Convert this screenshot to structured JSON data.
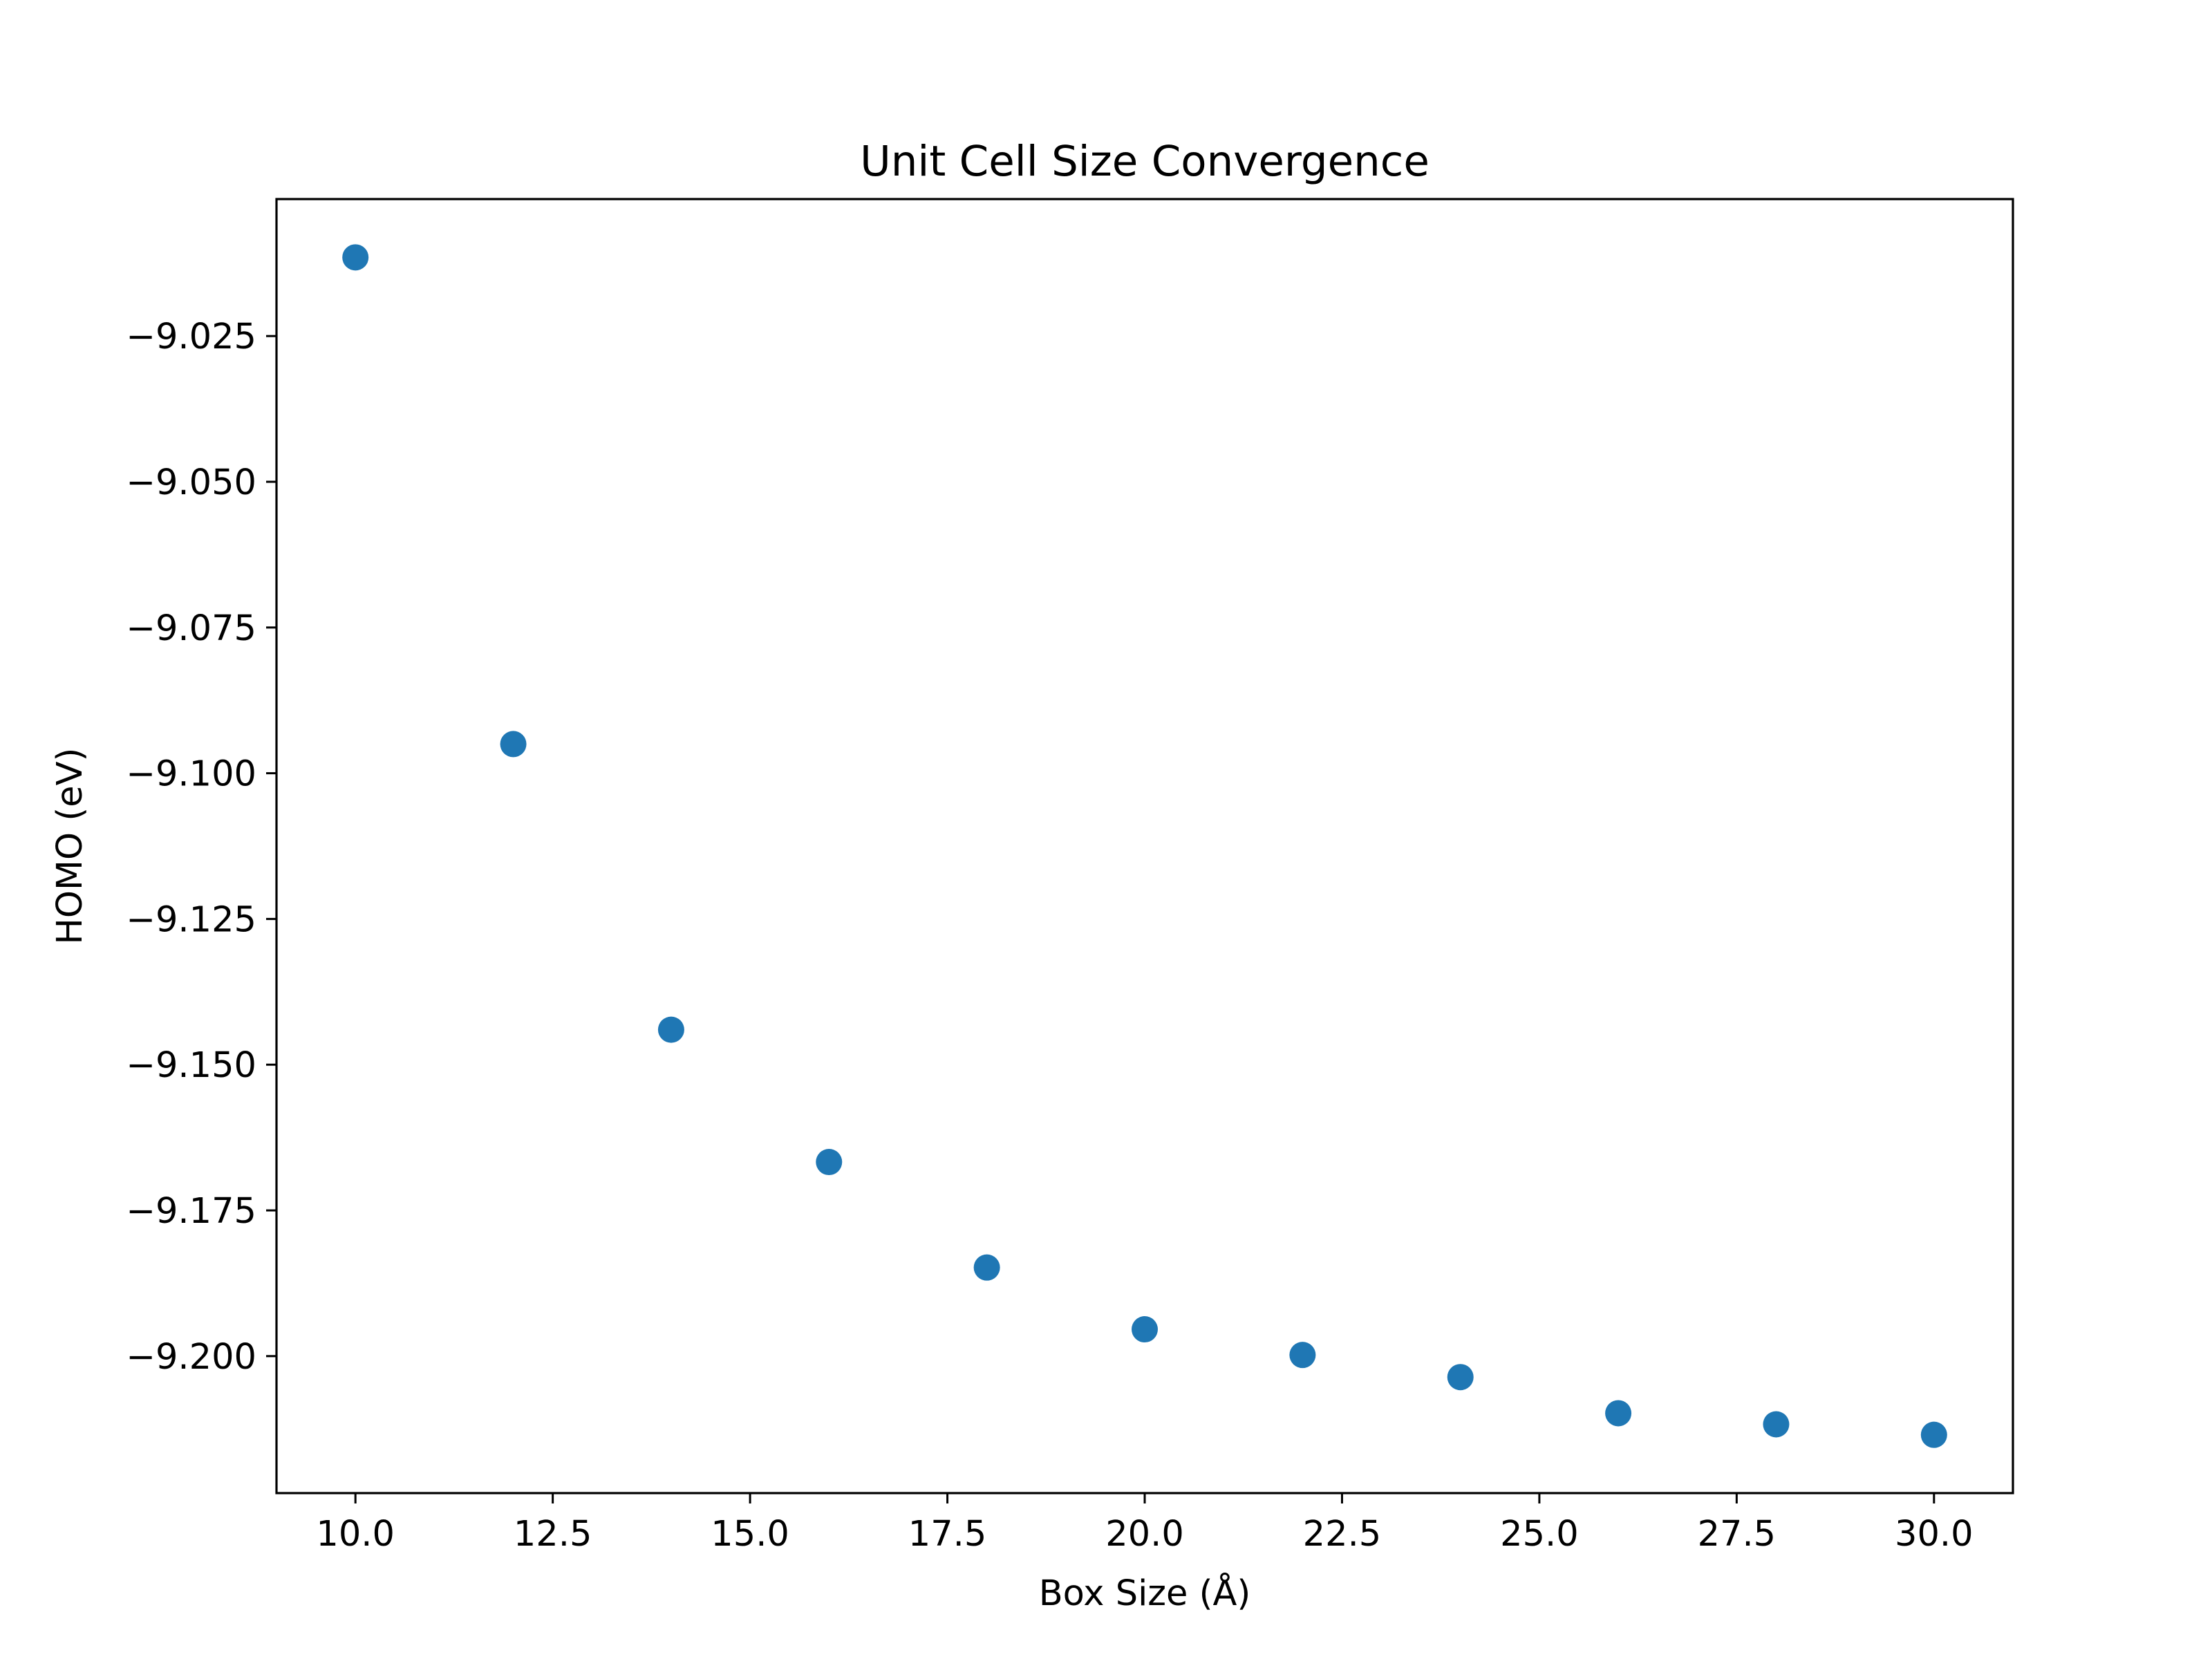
{
  "chart_data": {
    "type": "scatter",
    "title": "Unit Cell Size Convergence",
    "xlabel": "Box Size (Å)",
    "ylabel": "HOMO (eV)",
    "xlim": [
      9,
      31
    ],
    "ylim": [
      -9.2235,
      -9.0015
    ],
    "xticks": [
      "10.0",
      "12.5",
      "15.0",
      "17.5",
      "20.0",
      "22.5",
      "25.0",
      "27.5",
      "30.0"
    ],
    "yticks": [
      "−9.025",
      "−9.050",
      "−9.075",
      "−9.100",
      "−9.125",
      "−9.150",
      "−9.175",
      "−9.200"
    ],
    "grid": false,
    "color": "#1f77b4",
    "series": [
      {
        "x": [
          10,
          12,
          14,
          16,
          18,
          20,
          22,
          24,
          26,
          28,
          30
        ],
        "y": [
          -9.0115,
          -9.095,
          -9.144,
          -9.1667,
          -9.1848,
          -9.1954,
          -9.1998,
          -9.2036,
          -9.2098,
          -9.2117,
          -9.2135
        ]
      }
    ]
  }
}
